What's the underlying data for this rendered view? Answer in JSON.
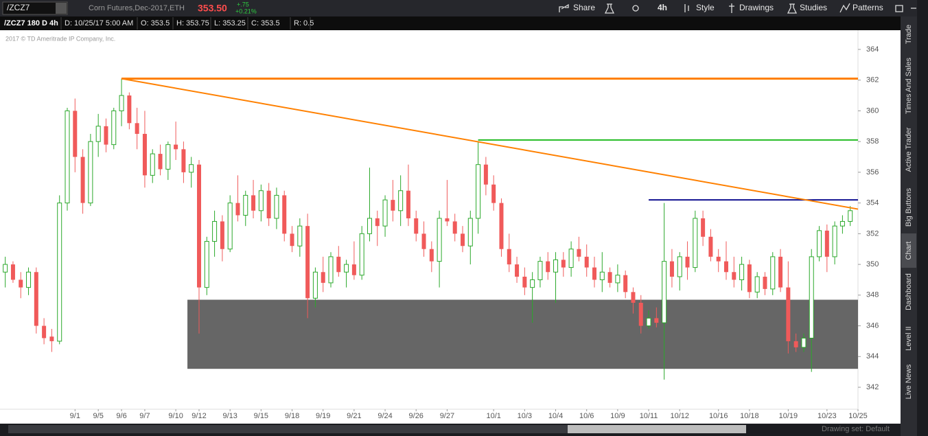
{
  "toolbar": {
    "symbol": "/ZCZ7",
    "description": "Corn Futures,Dec-2017,ETH",
    "price": "353.50",
    "change": "+.75",
    "change_pct": "+0.21%",
    "buttons": [
      "Share",
      "4h",
      "Style",
      "Drawings",
      "Studies",
      "Patterns"
    ]
  },
  "info_bar": [
    "/ZCZ7 180 D 4h",
    "D: 10/25/17 5:00 AM",
    "O: 353.5",
    "H: 353.75",
    "L: 353.25",
    "C: 353.5",
    "R: 0.5"
  ],
  "copyright": "2017 © TD Ameritrade IP Company, Inc.",
  "sidebar_tabs": [
    "Trade",
    "Times And Sales",
    "Active Trader",
    "Big Buttons",
    "Chart",
    "Dashboard",
    "Level II",
    "Live News"
  ],
  "status": "Drawing set: Default",
  "chart_data": {
    "type": "candlestick",
    "up_color": "#2aa82a",
    "down_color": "#f05a5a",
    "open": [
      349.5,
      350,
      349,
      348.5,
      349.5,
      346,
      345.3,
      345,
      354,
      360,
      357,
      354,
      358,
      359,
      357.8,
      360,
      361,
      359.2,
      358.5,
      355.8,
      357.2,
      356.2,
      357.8,
      357.5,
      356,
      356.5,
      348.5,
      351.5,
      352.8,
      351,
      354,
      353.2,
      354.5,
      353.5,
      354.8,
      353,
      354.5,
      352,
      351.2,
      352.5,
      347.8,
      349.5,
      348.8,
      350.5,
      349.5,
      350,
      349.3,
      352,
      353,
      352.5,
      354.2,
      353.5,
      354.8,
      353,
      352,
      351,
      350.2,
      353,
      352.8,
      352,
      351.2,
      353,
      356.5,
      355.2,
      354,
      351,
      350,
      349.2,
      348.5,
      349,
      350.2,
      349.5,
      350.3,
      349.8,
      351,
      350.5,
      349.8,
      349,
      349.5,
      348.8,
      349.3,
      348.2,
      347.5,
      346,
      346.5,
      346.2,
      350.2,
      349.2,
      350.5,
      349.8,
      353,
      351.8,
      350.5,
      350.2,
      349.5,
      349,
      350,
      348.2,
      349.2,
      348.4,
      350.5,
      348.5,
      345,
      344.6,
      345.2,
      350.5,
      352.2,
      350.5,
      352.5,
      352.8
    ],
    "high": [
      350.5,
      350.2,
      349.5,
      349.8,
      349.8,
      346.5,
      345.8,
      354.5,
      360.2,
      360.8,
      357.5,
      358.5,
      359.8,
      359.5,
      360.2,
      362.1,
      361.2,
      360.2,
      360,
      357.5,
      357.8,
      358,
      359.3,
      358,
      357,
      356.8,
      351.8,
      353.5,
      353.2,
      354.5,
      355.8,
      354.8,
      355.5,
      355.2,
      355.3,
      355,
      354.8,
      352.5,
      353,
      353.3,
      349.8,
      350.5,
      350.8,
      351.2,
      350.3,
      351.5,
      352.5,
      356.3,
      353.5,
      354.5,
      355.5,
      355.8,
      356.5,
      353.5,
      352.8,
      351.5,
      353.5,
      355.5,
      353.3,
      352.5,
      353.5,
      358,
      357,
      355.8,
      354.3,
      352,
      350.5,
      349.8,
      349.5,
      350.5,
      350.8,
      350.8,
      350.8,
      351.5,
      351.8,
      351.3,
      350.5,
      350.8,
      349.8,
      350,
      349.6,
      348.5,
      348,
      347,
      347.2,
      354,
      351,
      350.8,
      351.5,
      353.5,
      353.5,
      352.3,
      351,
      351.5,
      350.5,
      350.5,
      350.3,
      349.5,
      349.5,
      350.8,
      351,
      350.2,
      345.5,
      345.5,
      351,
      352.5,
      352.6,
      352.8,
      353.2,
      353.8
    ],
    "low": [
      348.5,
      348.8,
      347.8,
      348,
      345.5,
      344.8,
      344.3,
      344.8,
      353.5,
      356,
      353.3,
      353.8,
      357,
      357.3,
      357.5,
      359,
      358.8,
      357.5,
      355,
      355.3,
      355.8,
      355.5,
      356.8,
      355.3,
      355,
      345.5,
      348,
      350.5,
      350.2,
      350.8,
      352.8,
      352.5,
      353,
      352.8,
      352.5,
      352.3,
      351.5,
      350.8,
      350.5,
      346.5,
      347.2,
      348.2,
      348.5,
      349.2,
      348.5,
      349,
      349,
      351.5,
      351.2,
      351.8,
      352.8,
      352.5,
      352.5,
      351.5,
      350.5,
      349.5,
      348.5,
      352.5,
      351.5,
      350.8,
      350,
      352,
      354.5,
      353.5,
      350.5,
      349.5,
      348.8,
      348,
      346.2,
      348.5,
      349,
      347.5,
      349.2,
      349.2,
      350.2,
      349.2,
      348.5,
      348.2,
      348.5,
      348.2,
      347.8,
      346.8,
      345.5,
      345.8,
      345.9,
      342.5,
      348.5,
      348.3,
      349,
      349.5,
      351.2,
      350.2,
      349.5,
      349,
      348.5,
      348.3,
      347.8,
      347.8,
      348,
      348,
      348.2,
      344.2,
      344.3,
      344.3,
      343,
      350.2,
      349.5,
      350,
      352,
      352.5
    ],
    "close": [
      350,
      349,
      348.5,
      349.5,
      346,
      345.2,
      345,
      354,
      360,
      357,
      354,
      358,
      359,
      357.8,
      360,
      361,
      359.2,
      358.5,
      355.8,
      357.2,
      356.2,
      357.8,
      357.5,
      356,
      356.5,
      348.5,
      351.5,
      352.8,
      351,
      354,
      353.2,
      354.5,
      353.5,
      354.8,
      353,
      354.5,
      352,
      351.2,
      352.5,
      347.8,
      349.5,
      348.8,
      350.5,
      349.5,
      350,
      349.3,
      352,
      353,
      352.5,
      354.2,
      353.5,
      354.8,
      353,
      352,
      351,
      350.2,
      353,
      352.8,
      352,
      351.2,
      353,
      356.5,
      355.2,
      354,
      351,
      350,
      349.2,
      348.5,
      349,
      350.2,
      349.5,
      350.3,
      349.8,
      351,
      350.5,
      349.8,
      349,
      349.5,
      348.8,
      349.3,
      348.2,
      347.5,
      346,
      346.5,
      346.2,
      350.2,
      349.2,
      350.5,
      349.8,
      353,
      351.8,
      350.5,
      350.2,
      349.5,
      349,
      350,
      348.2,
      349.2,
      348.4,
      350.5,
      348.5,
      345,
      344.6,
      345.2,
      350.5,
      352.2,
      350.5,
      352.5,
      352.8,
      353.5
    ],
    "xlim": [
      -0.5,
      110
    ],
    "ylim": [
      340.57,
      365.25
    ],
    "xticks": [
      {
        "value": 9,
        "label": "9/1"
      },
      {
        "value": 12,
        "label": "9/5"
      },
      {
        "value": 15,
        "label": "9/6"
      },
      {
        "value": 18,
        "label": "9/7"
      },
      {
        "value": 22,
        "label": "9/10"
      },
      {
        "value": 25,
        "label": "9/12"
      },
      {
        "value": 29,
        "label": "9/13"
      },
      {
        "value": 33,
        "label": "9/15"
      },
      {
        "value": 37,
        "label": "9/18"
      },
      {
        "value": 41,
        "label": "9/19"
      },
      {
        "value": 45,
        "label": "9/21"
      },
      {
        "value": 49,
        "label": "9/24"
      },
      {
        "value": 53,
        "label": "9/26"
      },
      {
        "value": 57,
        "label": "9/27"
      },
      {
        "value": 63,
        "label": "10/1"
      },
      {
        "value": 67,
        "label": "10/3"
      },
      {
        "value": 71,
        "label": "10/4"
      },
      {
        "value": 75,
        "label": "10/6"
      },
      {
        "value": 79,
        "label": "10/9"
      },
      {
        "value": 83,
        "label": "10/11"
      },
      {
        "value": 87,
        "label": "10/12"
      },
      {
        "value": 92,
        "label": "10/16"
      },
      {
        "value": 96,
        "label": "10/18"
      },
      {
        "value": 101,
        "label": "10/19"
      },
      {
        "value": 106,
        "label": "10/23"
      },
      {
        "value": 110,
        "label": "10/25"
      }
    ],
    "yticks": [
      342,
      344,
      346,
      348,
      350,
      352,
      354,
      356,
      358,
      360,
      362,
      364
    ],
    "drawings": [
      {
        "kind": "zone",
        "x0": 23.5,
        "y0": 343.2,
        "y1": 347.7,
        "color": "#666666"
      },
      {
        "kind": "hline",
        "x0": 15,
        "y0": 362.1,
        "color": "#ff8000"
      },
      {
        "kind": "hline",
        "x0": 61,
        "y0": 358.1,
        "color": "#22bb22"
      },
      {
        "kind": "hline",
        "x0": 83,
        "y0": 354.2,
        "color": "#101090"
      },
      {
        "kind": "trend",
        "x0": 15,
        "y0": 362.1,
        "x1": 110,
        "y1": 353.6,
        "color": "#ff8000"
      }
    ]
  }
}
